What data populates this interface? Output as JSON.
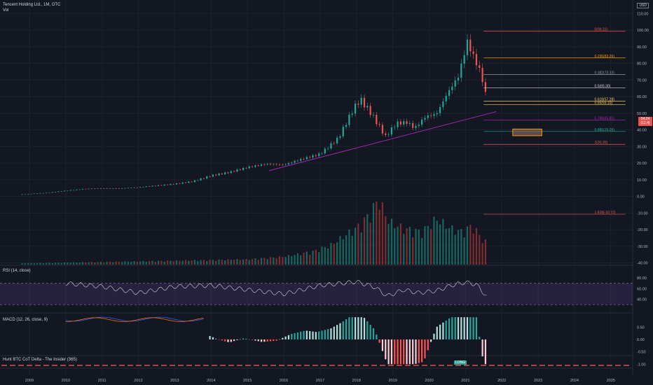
{
  "header": {
    "title": "Tencent Holding Ltd., 1M, OTC",
    "vol_label": "Vol",
    "currency": "USD"
  },
  "price": {
    "current": "54.24",
    "change": "(12.4)"
  },
  "fib_levels": [
    {
      "label": "0(99.31)",
      "value": 99.31,
      "color": "#ef5350"
    },
    {
      "label": "0.236(83.26)",
      "value": 83.26,
      "color": "#ff9800"
    },
    {
      "label": "0.382(73.33)",
      "value": 73.33,
      "color": "#9598a1"
    },
    {
      "label": "0.5(65.30)",
      "value": 65.3,
      "color": "#d1d4dc"
    },
    {
      "label": "0.618(57.28)",
      "value": 57.28,
      "color": "#f7c85c"
    },
    {
      "label": "0.65(55.10)",
      "value": 55.1,
      "color": "#f7c85c"
    },
    {
      "label": "0.786(45.85)",
      "value": 45.85,
      "color": "#9c27b0"
    },
    {
      "label": "0.886(39.05)",
      "value": 39.05,
      "color": "#26a69a"
    },
    {
      "label": "1(31.30)",
      "value": 31.3,
      "color": "#ef5350"
    },
    {
      "label": "1.618(-10.72)",
      "value": -10.72,
      "color": "#ef5350"
    }
  ],
  "rsi": {
    "label": "RSI (14, close)",
    "levels": [
      70,
      30
    ]
  },
  "macd": {
    "label": "MACD (12, 26, close, 9)"
  },
  "indicator3": {
    "label": "Hunt BTC CoT Delta - The Insider (365)",
    "tag": "LONG"
  },
  "chart_data": {
    "type": "candlestick",
    "title": "Tencent Holding Ltd., 1M, OTC",
    "price_axis": {
      "ticks": [
        "110.00",
        "100.00",
        "90.00",
        "80.00",
        "70.00",
        "60.00",
        "50.00",
        "40.00",
        "30.00",
        "20.00",
        "10.00",
        "0.00",
        "-10.00",
        "-20.00",
        "-30.00",
        "-40.00"
      ],
      "ylim": [
        -41,
        116
      ]
    },
    "rsi_axis": {
      "ticks": [
        "80.00",
        "60.00",
        "40.00"
      ],
      "ylim": [
        21,
        100
      ]
    },
    "macd_axis": {
      "ticks": [
        "0.50",
        "0.00",
        "-0.50",
        "-1.00"
      ],
      "ylim": [
        -1.02,
        0.96
      ]
    },
    "x_ticks": [
      "2009",
      "2010",
      "2011",
      "2012",
      "2013",
      "2014",
      "2015",
      "2016",
      "2017",
      "2018",
      "2019",
      "2020",
      "2021",
      "2022",
      "2023",
      "2024",
      "2025"
    ],
    "x_tick_years": [
      2009,
      2010,
      2011,
      2012,
      2013,
      2014,
      2015,
      2016,
      2017,
      2018,
      2019,
      2020,
      2021,
      2022,
      2023,
      2024,
      2025
    ],
    "price_anchors": [
      [
        2008.8,
        1.2
      ],
      [
        2009.5,
        2.2
      ],
      [
        2010,
        3.4
      ],
      [
        2010.5,
        4.5
      ],
      [
        2011,
        4.8
      ],
      [
        2011.5,
        4.8
      ],
      [
        2012,
        5.5
      ],
      [
        2012.5,
        6.5
      ],
      [
        2013,
        7.5
      ],
      [
        2013.5,
        9.0
      ],
      [
        2014,
        12.5
      ],
      [
        2014.5,
        14.5
      ],
      [
        2015,
        17.5
      ],
      [
        2015.5,
        19.5
      ],
      [
        2016,
        19.0
      ],
      [
        2016.5,
        22.5
      ],
      [
        2017,
        25.5
      ],
      [
        2017.5,
        35.0
      ],
      [
        2017.9,
        52.0
      ],
      [
        2018.1,
        58.5
      ],
      [
        2018.4,
        50.0
      ],
      [
        2018.8,
        36.0
      ],
      [
        2019.1,
        44.0
      ],
      [
        2019.4,
        44.5
      ],
      [
        2019.6,
        41.0
      ],
      [
        2019.9,
        48.0
      ],
      [
        2020.2,
        49.5
      ],
      [
        2020.5,
        62.0
      ],
      [
        2020.8,
        72.0
      ],
      [
        2021.05,
        93.0
      ],
      [
        2021.2,
        85.0
      ],
      [
        2021.35,
        78.0
      ],
      [
        2021.5,
        68.0
      ],
      [
        2021.6,
        55.0
      ]
    ],
    "rsi_anchors": [
      [
        2010,
        70
      ],
      [
        2011,
        64
      ],
      [
        2012,
        52
      ],
      [
        2013,
        64
      ],
      [
        2014,
        66
      ],
      [
        2015,
        58
      ],
      [
        2016,
        50
      ],
      [
        2017,
        66
      ],
      [
        2018,
        73
      ],
      [
        2018.5,
        63
      ],
      [
        2018.85,
        46
      ],
      [
        2019.3,
        58
      ],
      [
        2019.7,
        52
      ],
      [
        2020.2,
        56
      ],
      [
        2020.6,
        66
      ],
      [
        2021,
        72
      ],
      [
        2021.3,
        68
      ],
      [
        2021.6,
        44
      ]
    ],
    "macd_anchors": [
      [
        2013.9,
        0.18
      ],
      [
        2014.2,
        0.0
      ],
      [
        2014.5,
        -0.12
      ],
      [
        2014.9,
        0.05
      ],
      [
        2015.4,
        -0.1
      ],
      [
        2015.8,
        -0.05
      ],
      [
        2016.2,
        0.22
      ],
      [
        2016.6,
        0.36
      ],
      [
        2016.9,
        0.3
      ],
      [
        2017.3,
        0.45
      ],
      [
        2017.6,
        0.7
      ],
      [
        2017.8,
        0.9
      ],
      [
        2018.2,
        0.9
      ],
      [
        2018.5,
        0.4
      ],
      [
        2018.85,
        -1.0
      ],
      [
        2019.2,
        -1.0
      ],
      [
        2019.6,
        -1.0
      ],
      [
        2019.85,
        -0.9
      ],
      [
        2020.2,
        0.5
      ],
      [
        2020.6,
        0.9
      ],
      [
        2021.3,
        0.9
      ],
      [
        2021.5,
        -1.0
      ]
    ],
    "volume_anchors": [
      [
        2008.8,
        0.02
      ],
      [
        2011,
        0.04
      ],
      [
        2013,
        0.06
      ],
      [
        2015,
        0.08
      ],
      [
        2016,
        0.12
      ],
      [
        2016.8,
        0.2
      ],
      [
        2017.3,
        0.3
      ],
      [
        2017.7,
        0.45
      ],
      [
        2018.1,
        0.6
      ],
      [
        2018.4,
        0.8
      ],
      [
        2018.6,
        1.0
      ],
      [
        2018.9,
        0.65
      ],
      [
        2019.3,
        0.55
      ],
      [
        2019.8,
        0.5
      ],
      [
        2020.2,
        0.7
      ],
      [
        2020.6,
        0.55
      ],
      [
        2020.9,
        0.5
      ],
      [
        2021.2,
        0.6
      ],
      [
        2021.5,
        0.35
      ]
    ]
  }
}
